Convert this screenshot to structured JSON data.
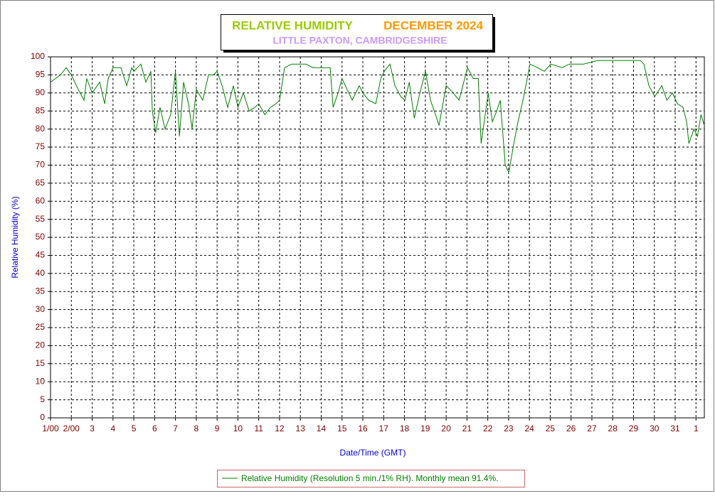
{
  "chart_data": {
    "type": "line",
    "title": "RELATIVE HUMIDITY",
    "title_period": "DECEMBER 2024",
    "subtitle": "LITTLE PAXTON, CAMBRIDGESHIRE",
    "x_label": "Date/Time (GMT)",
    "y_label": "Relative Humidity (%)",
    "xlim": [
      0,
      31.4
    ],
    "ylim": [
      0,
      100
    ],
    "xticks": [
      {
        "value": 0,
        "label": "1/00"
      },
      {
        "value": 1,
        "label": "2/00"
      },
      {
        "value": 2,
        "label": "3"
      },
      {
        "value": 3,
        "label": "4"
      },
      {
        "value": 4,
        "label": "5"
      },
      {
        "value": 5,
        "label": "6"
      },
      {
        "value": 6,
        "label": "7"
      },
      {
        "value": 7,
        "label": "8"
      },
      {
        "value": 8,
        "label": "9"
      },
      {
        "value": 9,
        "label": "10"
      },
      {
        "value": 10,
        "label": "11"
      },
      {
        "value": 11,
        "label": "12"
      },
      {
        "value": 12,
        "label": "13"
      },
      {
        "value": 13,
        "label": "14"
      },
      {
        "value": 14,
        "label": "15"
      },
      {
        "value": 15,
        "label": "16"
      },
      {
        "value": 16,
        "label": "17"
      },
      {
        "value": 17,
        "label": "18"
      },
      {
        "value": 18,
        "label": "19"
      },
      {
        "value": 19,
        "label": "20"
      },
      {
        "value": 20,
        "label": "21"
      },
      {
        "value": 21,
        "label": "22"
      },
      {
        "value": 22,
        "label": "23"
      },
      {
        "value": 23,
        "label": "24"
      },
      {
        "value": 24,
        "label": "25"
      },
      {
        "value": 25,
        "label": "26"
      },
      {
        "value": 26,
        "label": "27"
      },
      {
        "value": 27,
        "label": "28"
      },
      {
        "value": 28,
        "label": "29"
      },
      {
        "value": 29,
        "label": "30"
      },
      {
        "value": 30,
        "label": "31"
      },
      {
        "value": 31,
        "label": "1"
      }
    ],
    "yticks": [
      0,
      5,
      10,
      15,
      20,
      25,
      30,
      35,
      40,
      45,
      50,
      55,
      60,
      65,
      70,
      75,
      80,
      85,
      90,
      95,
      100
    ],
    "grid": true,
    "legend": "bottom",
    "x": [
      0,
      0.48,
      0.75,
      1.0,
      1.33,
      1.61,
      1.74,
      2.0,
      2.36,
      2.6,
      2.77,
      3.0,
      3.38,
      3.66,
      3.9,
      4.0,
      4.34,
      4.58,
      4.82,
      4.89,
      5.05,
      5.26,
      5.5,
      5.77,
      6.0,
      6.19,
      6.39,
      6.63,
      6.8,
      7.0,
      7.31,
      7.59,
      7.83,
      8.0,
      8.24,
      8.51,
      8.78,
      9.0,
      9.26,
      9.54,
      9.81,
      10.0,
      10.29,
      10.56,
      10.83,
      11.0,
      11.24,
      11.59,
      11.93,
      12.27,
      12.61,
      13.02,
      13.43,
      13.57,
      13.81,
      14.0,
      14.24,
      14.49,
      14.83,
      15.0,
      15.28,
      15.62,
      15.86,
      16.03,
      16.3,
      16.54,
      16.82,
      17.02,
      17.23,
      17.47,
      17.74,
      18.01,
      18.25,
      18.49,
      18.66,
      19.0,
      19.34,
      19.62,
      20.03,
      20.3,
      20.54,
      20.68,
      21.02,
      21.22,
      21.43,
      21.6,
      21.84,
      22.01,
      22.25,
      22.45,
      22.69,
      23.03,
      23.38,
      23.72,
      24.03,
      24.57,
      24.91,
      25.6,
      26.28,
      26.97,
      27.65,
      28.33,
      28.5,
      28.74,
      29.02,
      29.36,
      29.6,
      29.87,
      30.11,
      30.38,
      30.55,
      30.66,
      30.9,
      31.07,
      31.24,
      31.4
    ],
    "series": [
      {
        "name": "Relative Humidity (Resolution 5 min./1% RH). Monthly mean 91.4%.",
        "color": "#008000",
        "values": [
          93,
          95,
          97,
          95,
          91,
          88,
          94,
          90,
          93,
          87,
          94,
          97,
          97,
          92,
          97,
          96,
          98,
          93,
          96,
          85,
          79,
          86,
          80,
          84,
          96,
          78,
          93,
          87,
          80,
          91,
          88,
          95,
          95,
          96,
          92,
          86,
          92,
          86,
          90,
          85,
          86,
          87,
          84,
          86,
          87,
          88,
          97,
          98,
          98,
          98,
          97,
          97,
          97,
          86,
          90,
          94,
          91,
          88,
          92,
          90,
          88,
          87,
          94,
          96,
          98,
          92,
          89,
          88,
          93,
          83,
          90,
          96,
          88,
          84,
          81,
          92,
          90,
          88,
          97,
          94,
          94,
          76,
          90,
          82,
          85,
          88,
          70,
          68,
          76,
          82,
          88,
          98,
          97,
          96,
          98,
          97,
          98,
          98,
          99,
          99,
          99,
          99,
          98,
          92,
          89,
          92,
          88,
          90,
          87,
          86,
          82,
          76,
          80,
          78,
          84,
          81
        ]
      }
    ]
  }
}
